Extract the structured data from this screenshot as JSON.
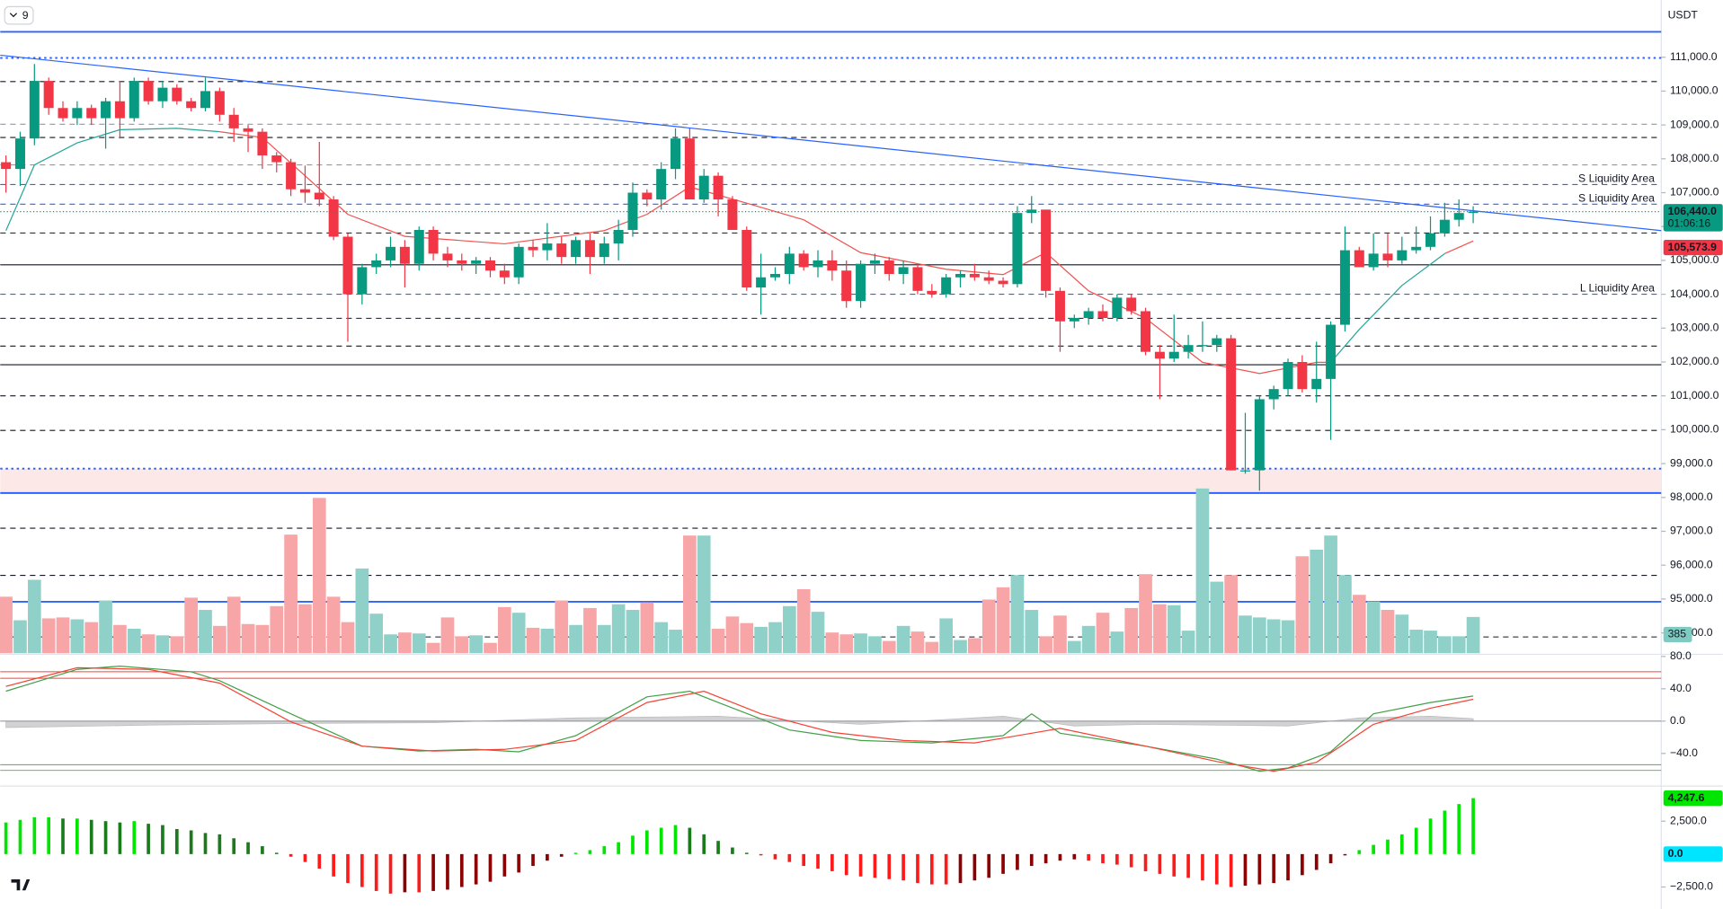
{
  "chart_data": [
    {
      "type": "candlestick",
      "interval": "9",
      "currency": "USDT",
      "countdown": "01:06:16",
      "xlim": [
        -0.4,
        116.2
      ],
      "ylim": [
        93400,
        112690
      ],
      "yticks": [
        {
          "value": 94000,
          "label": "94,000.0"
        },
        {
          "value": 95000,
          "label": "95,000.0"
        },
        {
          "value": 96000,
          "label": "96,000.0"
        },
        {
          "value": 97000,
          "label": "97,000.0"
        },
        {
          "value": 98000,
          "label": "98,000.0"
        },
        {
          "value": 99000,
          "label": "99,000.0"
        },
        {
          "value": 100000,
          "label": "100,000.0"
        },
        {
          "value": 101000,
          "label": "101,000.0"
        },
        {
          "value": 102000,
          "label": "102,000.0"
        },
        {
          "value": 103000,
          "label": "103,000.0"
        },
        {
          "value": 104000,
          "label": "104,000.0"
        },
        {
          "value": 105000,
          "label": "105,000.0"
        },
        {
          "value": 106000,
          "label": "106,000.0"
        },
        {
          "value": 107000,
          "label": "107,000.0"
        },
        {
          "value": 108000,
          "label": "108,000.0"
        },
        {
          "value": 109000,
          "label": "109,000.0"
        },
        {
          "value": 110000,
          "label": "110,000.0"
        },
        {
          "value": 111000,
          "label": "111,000.0"
        }
      ],
      "up_color": "#089981",
      "down_color": "#f23645",
      "open": [
        107900,
        107700,
        108600,
        110300,
        109500,
        109200,
        109500,
        109200,
        109700,
        109200,
        110300,
        109700,
        110100,
        109700,
        109500,
        110000,
        109300,
        108900,
        108800,
        108100,
        107900,
        107100,
        107000,
        106800,
        105700,
        104000,
        104800,
        105000,
        105400,
        104900,
        105900,
        105200,
        105000,
        104900,
        105000,
        104700,
        104500,
        105400,
        105300,
        105500,
        105100,
        105600,
        105100,
        105500,
        105900,
        107000,
        106800,
        107700,
        108600,
        106800,
        107500,
        106800,
        105900,
        104200,
        104500,
        104600,
        105200,
        104800,
        105000,
        104700,
        103800,
        104900,
        105000,
        104600,
        104800,
        104100,
        104000,
        104500,
        104600,
        104500,
        104400,
        104300,
        106400,
        106500,
        104100,
        103200,
        103300,
        103500,
        103300,
        103900,
        103500,
        102300,
        102100,
        102300,
        102500,
        102500,
        102700,
        98800,
        98800,
        100900,
        101200,
        102000,
        101200,
        101500,
        103100,
        105300,
        104800,
        105200,
        105000,
        105300,
        105400,
        105800,
        106200,
        106400
      ],
      "high": [
        108100,
        108800,
        110800,
        110400,
        109700,
        109700,
        109600,
        109800,
        110300,
        110400,
        110400,
        110300,
        110200,
        109800,
        110400,
        110100,
        109500,
        109000,
        108900,
        108200,
        108000,
        107800,
        108500,
        106900,
        105800,
        104900,
        105200,
        105700,
        105600,
        106000,
        106000,
        105400,
        105200,
        105100,
        105100,
        104900,
        105500,
        105600,
        106100,
        105700,
        105700,
        105800,
        105700,
        106200,
        107300,
        107100,
        107900,
        108900,
        108900,
        107700,
        107600,
        106900,
        106000,
        105200,
        104800,
        105400,
        105300,
        105300,
        105300,
        105000,
        105000,
        105200,
        105100,
        105000,
        104900,
        104300,
        104600,
        104700,
        104900,
        104700,
        104500,
        106600,
        106900,
        106500,
        104200,
        103400,
        103600,
        103700,
        104000,
        104000,
        103600,
        102500,
        103400,
        102800,
        103200,
        102800,
        102800,
        100500,
        101000,
        101300,
        102100,
        102200,
        102600,
        103200,
        106000,
        105400,
        105800,
        105800,
        105700,
        106000,
        106300,
        106700,
        106800,
        106600
      ],
      "low": [
        107000,
        107200,
        108400,
        109300,
        109100,
        109000,
        109000,
        108300,
        108600,
        109100,
        109600,
        109500,
        109600,
        109400,
        109400,
        109100,
        108500,
        108200,
        107700,
        107600,
        106900,
        106700,
        106600,
        105600,
        102600,
        103700,
        104600,
        104800,
        104200,
        104700,
        105000,
        104800,
        104700,
        104600,
        104500,
        104300,
        104300,
        105100,
        105000,
        104900,
        104900,
        104600,
        104900,
        105000,
        105700,
        106600,
        106500,
        107400,
        106800,
        106700,
        106300,
        105900,
        104100,
        103400,
        104400,
        104300,
        104700,
        104500,
        104400,
        103600,
        103600,
        104600,
        104400,
        104300,
        104000,
        103900,
        103900,
        104200,
        104400,
        104300,
        104200,
        104200,
        106100,
        103900,
        102300,
        103000,
        103100,
        103200,
        103200,
        103400,
        102200,
        100900,
        102000,
        102100,
        102300,
        102300,
        98800,
        98700,
        98200,
        100600,
        101000,
        101100,
        100800,
        99700,
        102900,
        104800,
        104700,
        104800,
        104900,
        105200,
        105300,
        105700,
        106000,
        106100
      ],
      "close": [
        107700,
        108600,
        110300,
        109500,
        109200,
        109500,
        109200,
        109700,
        109200,
        110300,
        109700,
        110100,
        109700,
        109500,
        110000,
        109300,
        108900,
        108800,
        108100,
        107900,
        107100,
        107000,
        106800,
        105700,
        104000,
        104800,
        105000,
        105400,
        104900,
        105900,
        105200,
        105000,
        104900,
        105000,
        104700,
        104500,
        105400,
        105300,
        105500,
        105100,
        105600,
        105100,
        105500,
        105900,
        107000,
        106800,
        107700,
        108600,
        106800,
        107500,
        106800,
        105900,
        104200,
        104500,
        104600,
        105200,
        104800,
        105000,
        104700,
        103800,
        104900,
        105000,
        104600,
        104800,
        104100,
        104000,
        104500,
        104600,
        104500,
        104400,
        104300,
        106400,
        106500,
        104100,
        103200,
        103300,
        103500,
        103300,
        103900,
        103500,
        102300,
        102100,
        102300,
        102500,
        102500,
        102700,
        98800,
        98800,
        100900,
        101200,
        102000,
        101200,
        101500,
        103100,
        105300,
        104800,
        105200,
        105000,
        105300,
        105400,
        105800,
        106200,
        106400,
        106440
      ],
      "last_price": {
        "value": 106440,
        "label": "106,440.0"
      },
      "ma_label": {
        "value": 105573.9,
        "label": "105,573.9"
      },
      "series": [
        {
          "color": "#26a69a",
          "x": [
            0,
            2,
            5,
            8,
            12,
            15,
            16,
            93,
            95,
            98,
            101
          ],
          "values": [
            105880,
            107820,
            108470,
            108860,
            108900,
            108800,
            null,
            101990,
            102960,
            104260,
            105200
          ]
        },
        {
          "color": "#ef5350",
          "x": [
            15,
            18,
            21,
            24,
            28,
            35,
            42,
            45,
            48,
            52,
            56,
            60,
            66,
            70,
            73,
            76,
            80,
            84,
            88,
            92,
            93,
            94,
            101,
            103
          ],
          "values": [
            108800,
            108630,
            107500,
            106360,
            105710,
            105490,
            105880,
            106360,
            107170,
            106690,
            106200,
            105230,
            104740,
            104580,
            105230,
            104100,
            103290,
            101990,
            101660,
            101990,
            101990,
            null,
            105200,
            105573.9
          ]
        }
      ],
      "trendline": {
        "color": "#2962ff",
        "x": [
          -0.4,
          116.2
        ],
        "values": [
          111060,
          105880
        ]
      },
      "zone": {
        "from": 98130,
        "to": 98850,
        "color": "#fde8e8"
      },
      "levels": [
        {
          "value": 111750,
          "color": "#2962ff",
          "style": "solid"
        },
        {
          "value": 110980,
          "color": "#2962ff",
          "style": "dotted"
        },
        {
          "value": 110280,
          "color": "#131722",
          "style": "dashed"
        },
        {
          "value": 109020,
          "color": "#9598a1",
          "style": "dashed"
        },
        {
          "value": 108630,
          "color": "#131722",
          "style": "dashed"
        },
        {
          "value": 107820,
          "color": "#9598a1",
          "style": "dashed"
        },
        {
          "value": 107240,
          "color": "#2962ff",
          "style": "dashed",
          "label": "S Liquidity Area"
        },
        {
          "value": 106660,
          "color": "#2962ff",
          "style": "dashed",
          "label": "S Liquidity Area"
        },
        {
          "value": 105810,
          "color": "#131722",
          "style": "dashed"
        },
        {
          "value": 104870,
          "color": "#131722",
          "style": "solid"
        },
        {
          "value": 104000,
          "color": "#2962ff",
          "style": "dashed",
          "label": "L Liquidity Area"
        },
        {
          "value": 103290,
          "color": "#131722",
          "style": "dashed"
        },
        {
          "value": 102470,
          "color": "#131722",
          "style": "dashed"
        },
        {
          "value": 101920,
          "color": "#131722",
          "style": "solid"
        },
        {
          "value": 101000,
          "color": "#131722",
          "style": "dashed"
        },
        {
          "value": 99980,
          "color": "#131722",
          "style": "dashed"
        },
        {
          "value": 98850,
          "color": "#2962ff",
          "style": "dotted"
        },
        {
          "value": 98130,
          "color": "#2962ff",
          "style": "solid"
        },
        {
          "value": 97090,
          "color": "#131722",
          "style": "dashed"
        },
        {
          "value": 95700,
          "color": "#131722",
          "style": "dashed"
        },
        {
          "value": 94920,
          "color": "#2962ff",
          "style": "solid"
        },
        {
          "value": 93880,
          "color": "#131722",
          "style": "dashed"
        }
      ]
    },
    {
      "type": "volume",
      "ylim": [
        0,
        6940
      ],
      "up_color": "#8fd1c9",
      "down_color": "#f7a5a7",
      "values": [
        600,
        350,
        780,
        370,
        380,
        360,
        330,
        560,
        300,
        260,
        200,
        190,
        180,
        590,
        460,
        290,
        600,
        310,
        300,
        500,
        1260,
        520,
        1650,
        600,
        330,
        900,
        420,
        200,
        220,
        210,
        110,
        380,
        180,
        190,
        110,
        490,
        430,
        270,
        260,
        560,
        300,
        480,
        300,
        520,
        460,
        540,
        330,
        250,
        1250,
        1250,
        260,
        390,
        320,
        280,
        330,
        500,
        680,
        440,
        220,
        200,
        210,
        180,
        130,
        290,
        230,
        120,
        370,
        140,
        160,
        570,
        700,
        830,
        460,
        180,
        400,
        130,
        290,
        430,
        230,
        480,
        840,
        520,
        510,
        240,
        1750,
        760,
        830,
        400,
        380,
        360,
        350,
        1030,
        1100,
        1250,
        830,
        620,
        550,
        460,
        410,
        250,
        240,
        180,
        180,
        385
      ]
    },
    {
      "type": "line",
      "ylim": [
        -79,
        84
      ],
      "yticks": [
        {
          "value": 80,
          "label": "80.0"
        },
        {
          "value": 40,
          "label": "40.0"
        },
        {
          "value": 0,
          "label": "0.0"
        },
        {
          "value": -40,
          "label": "−40.0"
        }
      ],
      "series": [
        {
          "color": "#43a047",
          "x": [
            0,
            5,
            8,
            13,
            15,
            20,
            25,
            29,
            33,
            36,
            40,
            45,
            48,
            50,
            55,
            60,
            65,
            70,
            72,
            74,
            80,
            85,
            88,
            90,
            93,
            96,
            100,
            103
          ],
          "values": [
            37,
            64,
            68,
            61,
            50,
            9,
            -31,
            -37,
            -35,
            -38,
            -18,
            30,
            37,
            23,
            -11,
            -24,
            -27,
            -18,
            9,
            -15,
            -31,
            -47,
            -62,
            -58,
            -38,
            9,
            23,
            31
          ]
        },
        {
          "color": "#f44336",
          "x": [
            0,
            5,
            10,
            15,
            20,
            25,
            30,
            35,
            40,
            45,
            49,
            53,
            58,
            63,
            68,
            72,
            74,
            80,
            85,
            89,
            92,
            96,
            100,
            103
          ],
          "values": [
            43,
            66,
            64,
            47,
            -1,
            -31,
            -37,
            -35,
            -24,
            23,
            37,
            9,
            -14,
            -24,
            -27,
            -15,
            -9,
            -31,
            -50,
            -62,
            -51,
            -4,
            16,
            27
          ]
        }
      ],
      "area": {
        "color": "#c8c8c8",
        "x": [
          0,
          10,
          20,
          30,
          40,
          50,
          60,
          70,
          75,
          80,
          90,
          95,
          100,
          103
        ],
        "values": [
          -8,
          -5,
          -3,
          -2,
          4,
          6,
          -4,
          6,
          -6,
          -4,
          -6,
          4,
          6,
          3
        ]
      },
      "levels": [
        {
          "value": 61,
          "color": "#f44336"
        },
        {
          "value": 53,
          "color": "#f44336"
        },
        {
          "value": -54,
          "color": "#4caf50"
        },
        {
          "value": -61,
          "color": "#4caf50"
        }
      ]
    },
    {
      "type": "bar",
      "ylim": [
        -4170,
        5250
      ],
      "yticks": [
        {
          "value": 2500,
          "label": "2,500.0"
        },
        {
          "value": -2500,
          "label": "−2,500.0"
        }
      ],
      "colors": {
        "rising_pos": "#00e600",
        "falling_pos": "#1b7a1b",
        "falling_neg": "#ff1a1a",
        "rising_neg": "#8b0000"
      },
      "last_label": {
        "value": 4247.6,
        "label": "4,247.6"
      },
      "markers": [
        {
          "value": 0,
          "label": "0.0",
          "color": "#00e5ff"
        }
      ],
      "values": [
        2400,
        2600,
        2800,
        2800,
        2700,
        2700,
        2600,
        2500,
        2400,
        2500,
        2300,
        2200,
        1900,
        1800,
        1600,
        1500,
        1200,
        900,
        600,
        100,
        -200,
        -600,
        -1100,
        -1700,
        -2200,
        -2500,
        -2800,
        -3000,
        -2900,
        -2900,
        -2800,
        -2700,
        -2500,
        -2300,
        -2100,
        -1700,
        -1400,
        -900,
        -500,
        -200,
        100,
        300,
        600,
        900,
        1400,
        1800,
        2000,
        2200,
        2000,
        1500,
        1000,
        500,
        100,
        -100,
        -400,
        -600,
        -900,
        -1100,
        -1300,
        -1600,
        -1700,
        -1800,
        -1900,
        -2000,
        -2200,
        -2300,
        -2300,
        -2200,
        -2000,
        -1800,
        -1500,
        -1200,
        -900,
        -700,
        -500,
        -400,
        -500,
        -700,
        -800,
        -1000,
        -1300,
        -1500,
        -1700,
        -1800,
        -2000,
        -2300,
        -2500,
        -2400,
        -2300,
        -2200,
        -2000,
        -1600,
        -1200,
        -700,
        -100,
        300,
        700,
        1100,
        1500,
        2000,
        2700,
        3300,
        3800,
        4247.6
      ]
    }
  ]
}
